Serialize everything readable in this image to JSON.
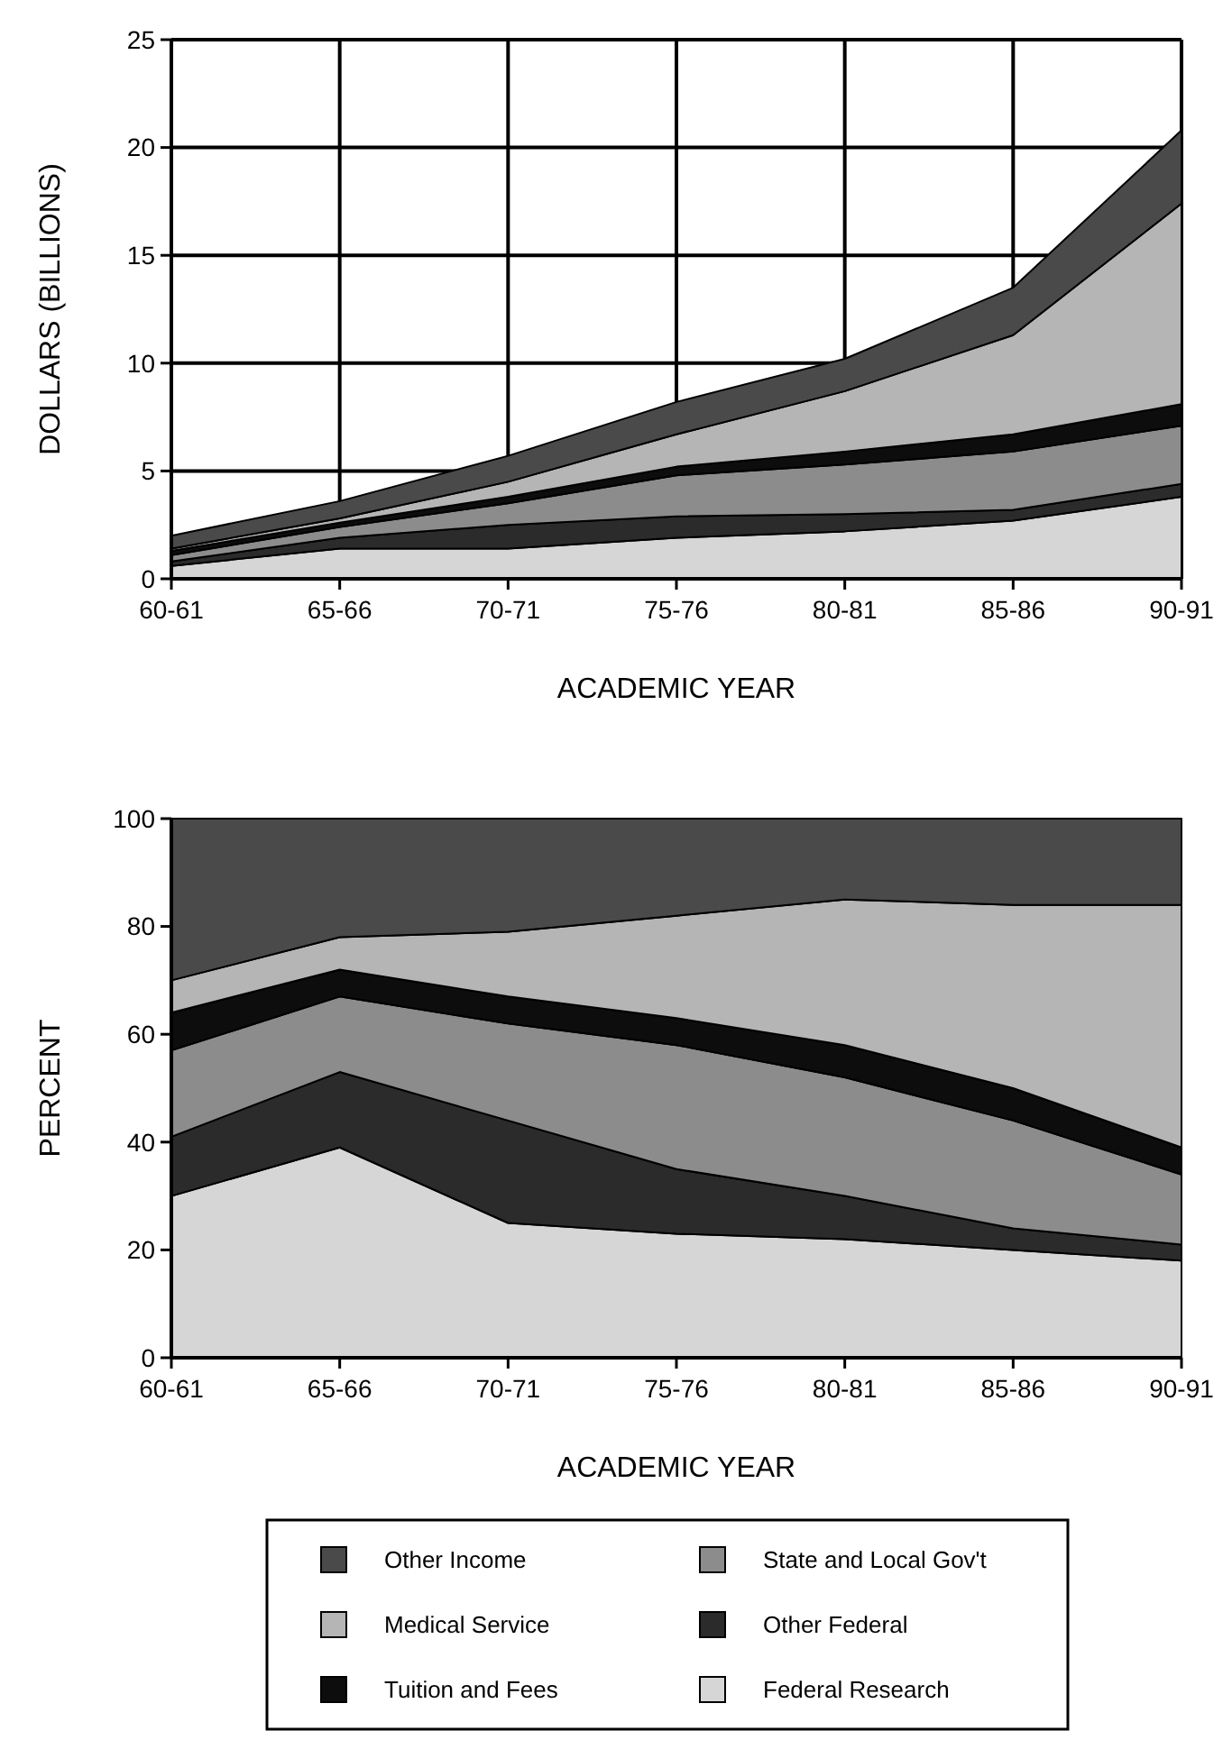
{
  "chart_data": [
    {
      "type": "area",
      "stacked": true,
      "ylabel": "DOLLARS (BILLIONS)",
      "xlabel": "ACADEMIC YEAR",
      "categories": [
        "60-61",
        "65-66",
        "70-71",
        "75-76",
        "80-81",
        "85-86",
        "90-91"
      ],
      "ylim": [
        0,
        25
      ],
      "yticks": [
        0,
        5,
        10,
        15,
        20,
        25
      ],
      "grid": true,
      "series": [
        {
          "color": "#d6d6d6",
          "values": [
            0.6,
            1.4,
            1.4,
            1.9,
            2.2,
            2.7,
            3.8
          ]
        },
        {
          "color": "#2b2b2b",
          "values": [
            0.2,
            0.5,
            1.1,
            1.0,
            0.8,
            0.5,
            0.6
          ]
        },
        {
          "color": "#8c8c8c",
          "values": [
            0.3,
            0.5,
            1.0,
            1.9,
            2.3,
            2.7,
            2.7
          ]
        },
        {
          "color": "#0d0d0d",
          "values": [
            0.2,
            0.2,
            0.3,
            0.4,
            0.6,
            0.8,
            1.0
          ]
        },
        {
          "color": "#b5b5b5",
          "values": [
            0.1,
            0.2,
            0.7,
            1.5,
            2.8,
            4.6,
            9.3
          ]
        },
        {
          "color": "#4a4a4a",
          "values": [
            0.6,
            0.8,
            1.2,
            1.5,
            1.5,
            2.2,
            3.4
          ]
        }
      ]
    },
    {
      "type": "area",
      "stacked": true,
      "ylabel": "PERCENT",
      "xlabel": "ACADEMIC YEAR",
      "categories": [
        "60-61",
        "65-66",
        "70-71",
        "75-76",
        "80-81",
        "85-86",
        "90-91"
      ],
      "ylim": [
        0,
        100
      ],
      "yticks": [
        0,
        20,
        40,
        60,
        80,
        100
      ],
      "legend": "bottom",
      "series": [
        {
          "name": "Federal Research",
          "color": "#d6d6d6",
          "values": [
            30,
            39,
            25,
            23,
            22,
            20,
            18
          ]
        },
        {
          "name": "Other Federal",
          "color": "#2b2b2b",
          "values": [
            11,
            14,
            19,
            12,
            8,
            4,
            3
          ]
        },
        {
          "name": "State and Local Gov't",
          "color": "#8c8c8c",
          "values": [
            16,
            14,
            18,
            23,
            22,
            20,
            13
          ]
        },
        {
          "name": "Tuition and Fees",
          "color": "#0d0d0d",
          "values": [
            7,
            5,
            5,
            5,
            6,
            6,
            5
          ]
        },
        {
          "name": "Medical Service",
          "color": "#b5b5b5",
          "values": [
            6,
            6,
            12,
            19,
            27,
            34,
            45
          ]
        },
        {
          "name": "Other Income",
          "color": "#4a4a4a",
          "values": [
            30,
            22,
            21,
            18,
            15,
            16,
            16
          ]
        }
      ]
    }
  ]
}
